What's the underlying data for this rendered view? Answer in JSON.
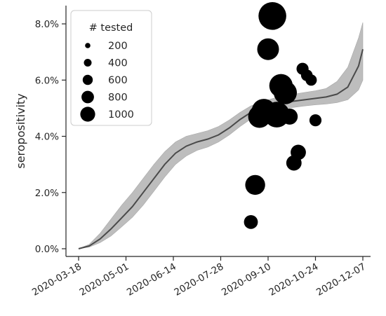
{
  "chart_data": {
    "type": "scatter",
    "title": "",
    "xlabel": "",
    "ylabel": "seropositivity",
    "x_ticks": [
      "2020-03-18",
      "2020-05-01",
      "2020-06-14",
      "2020-07-28",
      "2020-09-10",
      "2020-10-24",
      "2020-12-07"
    ],
    "y_ticks": [
      "0.0%",
      "2.0%",
      "4.0%",
      "6.0%",
      "8.0%"
    ],
    "x_range": [
      "2020-03-18",
      "2020-12-07"
    ],
    "ylim": [
      0,
      8.5
    ],
    "grid": false,
    "legend": {
      "title": "# tested",
      "placement": "top-left",
      "entries": [
        {
          "label": "200",
          "size": 200
        },
        {
          "label": "400",
          "size": 400
        },
        {
          "label": "600",
          "size": 600
        },
        {
          "label": "800",
          "size": 800
        },
        {
          "label": "1000",
          "size": 1000
        }
      ]
    },
    "trend": {
      "x": [
        "2020-03-18",
        "2020-03-28",
        "2020-04-07",
        "2020-04-17",
        "2020-04-27",
        "2020-05-07",
        "2020-05-17",
        "2020-05-27",
        "2020-06-06",
        "2020-06-16",
        "2020-06-26",
        "2020-07-06",
        "2020-07-16",
        "2020-07-26",
        "2020-08-05",
        "2020-08-15",
        "2020-08-25",
        "2020-09-04",
        "2020-09-14",
        "2020-09-24",
        "2020-10-04",
        "2020-10-14",
        "2020-10-24",
        "2020-11-03",
        "2020-11-13",
        "2020-11-23",
        "2020-12-03",
        "2020-12-07"
      ],
      "mean": [
        0.0,
        0.1,
        0.35,
        0.7,
        1.1,
        1.5,
        2.0,
        2.5,
        3.0,
        3.4,
        3.65,
        3.8,
        3.9,
        4.05,
        4.3,
        4.6,
        4.85,
        5.0,
        5.1,
        5.2,
        5.25,
        5.3,
        5.35,
        5.4,
        5.5,
        5.75,
        6.5,
        7.1
      ],
      "lower": [
        0.0,
        0.06,
        0.22,
        0.45,
        0.78,
        1.12,
        1.55,
        2.05,
        2.55,
        3.0,
        3.3,
        3.5,
        3.62,
        3.8,
        4.05,
        4.35,
        4.62,
        4.78,
        4.88,
        4.98,
        5.03,
        5.08,
        5.12,
        5.15,
        5.2,
        5.3,
        5.65,
        6.0
      ],
      "upper": [
        0.0,
        0.16,
        0.55,
        1.05,
        1.55,
        2.0,
        2.5,
        3.0,
        3.45,
        3.8,
        4.0,
        4.1,
        4.2,
        4.35,
        4.58,
        4.85,
        5.08,
        5.23,
        5.34,
        5.44,
        5.5,
        5.56,
        5.62,
        5.7,
        5.95,
        6.45,
        7.5,
        8.05
      ]
    },
    "points": [
      {
        "x": "2020-08-25",
        "y": 0.95,
        "n": 150
      },
      {
        "x": "2020-08-29",
        "y": 2.27,
        "n": 400
      },
      {
        "x": "2020-09-02",
        "y": 4.7,
        "n": 550
      },
      {
        "x": "2020-09-06",
        "y": 4.9,
        "n": 650
      },
      {
        "x": "2020-09-10",
        "y": 7.1,
        "n": 500
      },
      {
        "x": "2020-09-14",
        "y": 8.28,
        "n": 900
      },
      {
        "x": "2020-09-18",
        "y": 4.77,
        "n": 750
      },
      {
        "x": "2020-09-22",
        "y": 5.8,
        "n": 600
      },
      {
        "x": "2020-09-26",
        "y": 5.55,
        "n": 580
      },
      {
        "x": "2020-09-30",
        "y": 4.7,
        "n": 230
      },
      {
        "x": "2020-10-04",
        "y": 3.05,
        "n": 200
      },
      {
        "x": "2020-10-08",
        "y": 3.43,
        "n": 200
      },
      {
        "x": "2020-10-12",
        "y": 6.4,
        "n": 100
      },
      {
        "x": "2020-10-16",
        "y": 6.17,
        "n": 90
      },
      {
        "x": "2020-10-20",
        "y": 6.0,
        "n": 80
      },
      {
        "x": "2020-10-24",
        "y": 4.57,
        "n": 100
      }
    ],
    "colors": {
      "points": "#000000",
      "line": "#4a4a4a",
      "band": "#bdbdbd",
      "axis": "#262626"
    }
  }
}
